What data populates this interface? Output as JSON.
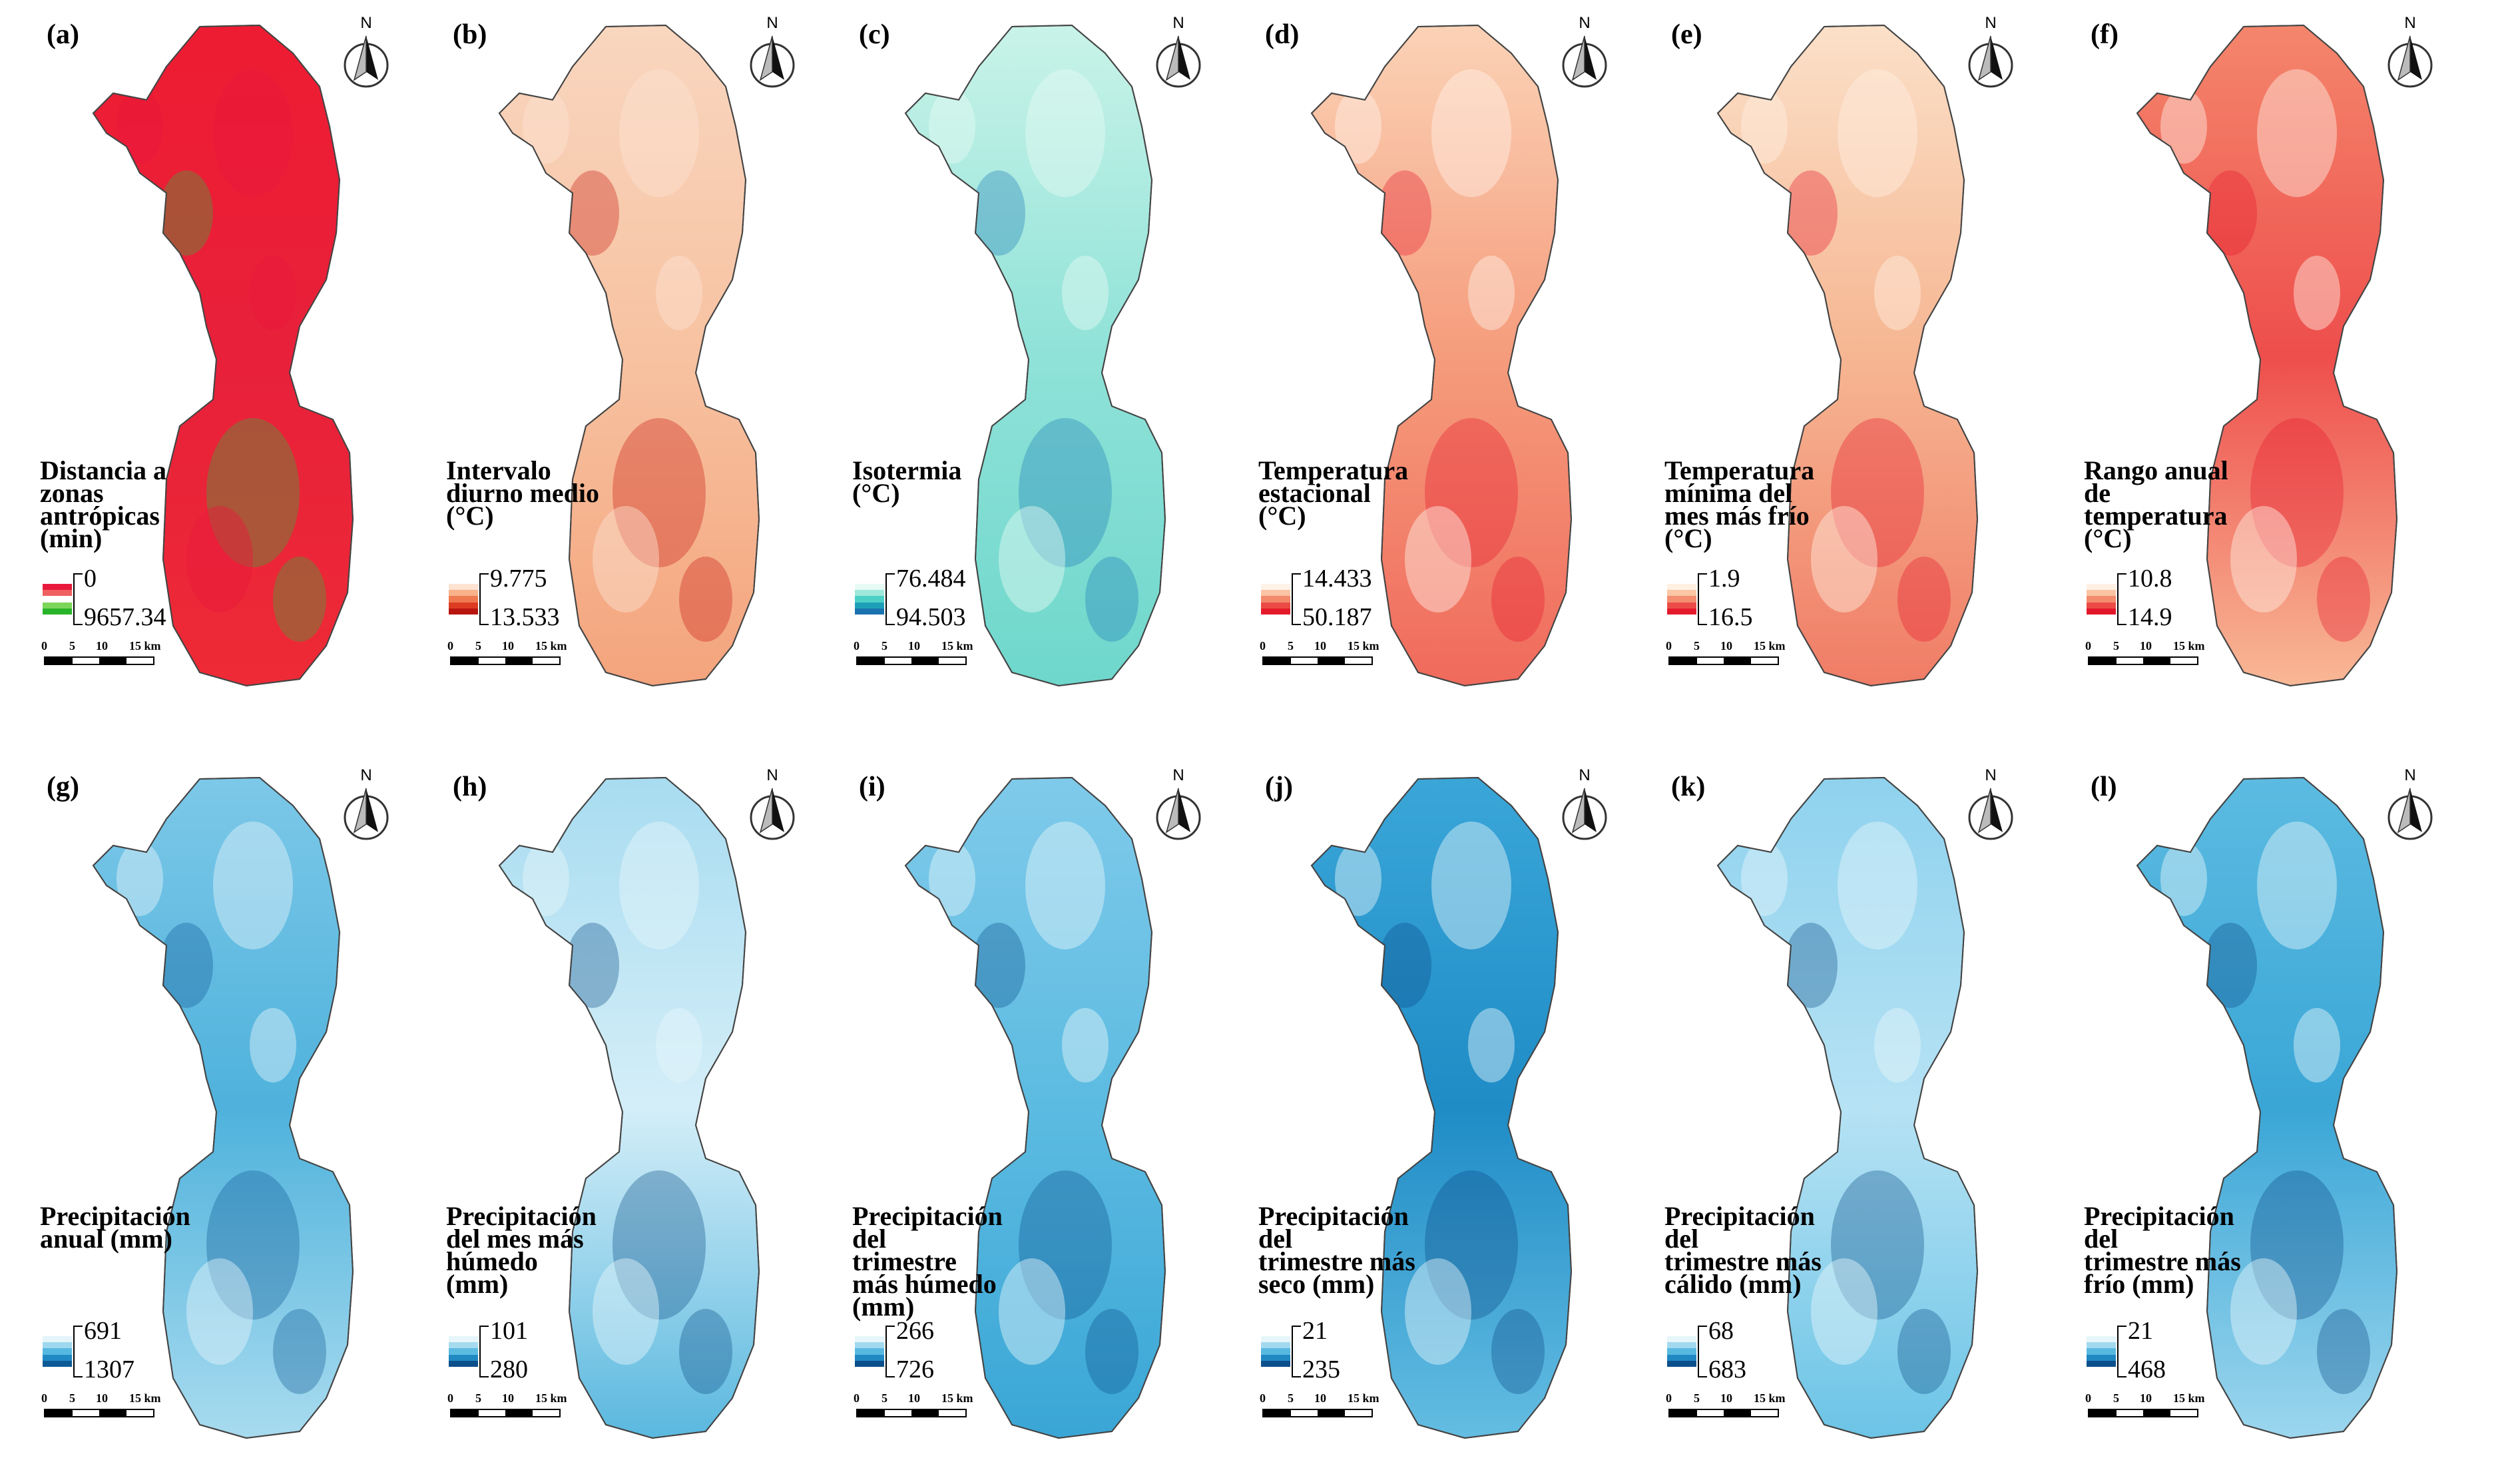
{
  "figure": {
    "scale_labels": [
      "0",
      "5",
      "10",
      "15 km"
    ],
    "north_label": "N",
    "panels": [
      {
        "id": "a",
        "letter": "(a)",
        "title": "Distancia a\nzonas\nantrópicas\n(min)",
        "min": "0",
        "max": "9657.34",
        "palette": [
          "#e8193c",
          "#f06060",
          "#ffffff",
          "#7cd65a",
          "#28b428"
        ],
        "map_colors": [
          "#ee1c32",
          "#e8203a",
          "#ee2a36"
        ],
        "accent": "#34b23c"
      },
      {
        "id": "b",
        "letter": "(b)",
        "title": "Intervalo\ndiurno medio\n(°C)",
        "min": "9.775",
        "max": "13.533",
        "palette": [
          "#fde3d2",
          "#f9b28a",
          "#f07a50",
          "#dc3c22",
          "#b8150f"
        ],
        "map_colors": [
          "#f9d6bf",
          "#f7c2a1",
          "#f4a47c"
        ],
        "accent": "#c81a12"
      },
      {
        "id": "c",
        "letter": "(c)",
        "title": "Isotermia\n(°C)",
        "min": "76.484",
        "max": "94.503",
        "palette": [
          "#e6fbf4",
          "#9ee9dc",
          "#4dd0c6",
          "#1e9fb8",
          "#1a73b0"
        ],
        "map_colors": [
          "#c9f3e8",
          "#8fe2d8",
          "#6fd7cc"
        ],
        "accent": "#1e7ab6"
      },
      {
        "id": "d",
        "letter": "(d)",
        "title": "Temperatura\nestacional\n(°C)",
        "min": "14.433",
        "max": "50.187",
        "palette": [
          "#fff2e8",
          "#fbc4a4",
          "#f38a6c",
          "#ec4a44",
          "#e41a2a"
        ],
        "map_colors": [
          "#fbd2b6",
          "#f59c7c",
          "#f06a5c"
        ],
        "accent": "#e4162a"
      },
      {
        "id": "e",
        "letter": "(e)",
        "title": "Temperatura\nmínima del\nmes más frío\n(°C)",
        "min": "1.9",
        "max": "16.5",
        "palette": [
          "#fff0e2",
          "#fbc7a4",
          "#f48e70",
          "#ec4c48",
          "#e41a2c"
        ],
        "map_colors": [
          "#fbe0c8",
          "#f6b692",
          "#f07c66"
        ],
        "accent": "#e4182c"
      },
      {
        "id": "f",
        "letter": "(f)",
        "title": "Rango anual\nde\ntemperatura\n(°C)",
        "min": "10.8",
        "max": "14.9",
        "palette": [
          "#fff0e4",
          "#fbc5a4",
          "#f48c6e",
          "#ec4a46",
          "#e4162a"
        ],
        "map_colors": [
          "#f4866c",
          "#ee4e4c",
          "#f8b896"
        ],
        "accent": "#e4162a"
      },
      {
        "id": "g",
        "letter": "(g)",
        "title": "Precipitación\nanual (mm)",
        "min": "691",
        "max": "1307",
        "palette": [
          "#e4f5fb",
          "#9fd8ee",
          "#55b8e0",
          "#1f89c4",
          "#0c5a96"
        ],
        "map_colors": [
          "#7cc8e8",
          "#4fb2dc",
          "#a8dbef"
        ],
        "accent": "#0d5a94"
      },
      {
        "id": "h",
        "letter": "(h)",
        "title": "Precipitación\ndel mes más\nhúmedo\n(mm)",
        "min": "101",
        "max": "280",
        "palette": [
          "#e6f6fb",
          "#a6dbef",
          "#5cbbe1",
          "#2189c2",
          "#0b4f8a"
        ],
        "map_colors": [
          "#a8dcf0",
          "#d4eef8",
          "#5ab8df"
        ],
        "accent": "#0c4c86"
      },
      {
        "id": "i",
        "letter": "(i)",
        "title": "Precipitación\ndel\ntrimestre\nmás húmedo\n(mm)",
        "min": "266",
        "max": "726",
        "palette": [
          "#e6f6fb",
          "#a2d9ee",
          "#58b9e0",
          "#1f88c2",
          "#0b4f8c"
        ],
        "map_colors": [
          "#7fcaea",
          "#5cbbe1",
          "#3aa6d6"
        ],
        "accent": "#0b4f8c"
      },
      {
        "id": "j",
        "letter": "(j)",
        "title": "Precipitación\ndel\ntrimestre más\nseco (mm)",
        "min": "21",
        "max": "235",
        "palette": [
          "#e6f6fb",
          "#a2d9ee",
          "#58b9e0",
          "#1f88c2",
          "#0b4f8c"
        ],
        "map_colors": [
          "#3aa6d8",
          "#1f8cc6",
          "#64bde2"
        ],
        "accent": "#0b4a86"
      },
      {
        "id": "k",
        "letter": "(k)",
        "title": "Precipitación\ndel\ntrimestre más\ncálido (mm)",
        "min": "68",
        "max": "683",
        "palette": [
          "#e6f6fb",
          "#a2d9ee",
          "#58b9e0",
          "#1f88c2",
          "#0b4f8c"
        ],
        "map_colors": [
          "#8fd2ee",
          "#b6e2f4",
          "#6cc4e6"
        ],
        "accent": "#0b4c88"
      },
      {
        "id": "l",
        "letter": "(l)",
        "title": "Precipitación\ndel\ntrimestre más\nfrío (mm)",
        "min": "21",
        "max": "468",
        "palette": [
          "#e6f6fb",
          "#a2d9ee",
          "#58b9e0",
          "#1f88c2",
          "#0b4f8c"
        ],
        "map_colors": [
          "#5cbbe1",
          "#3aa6d6",
          "#9cd6ee"
        ],
        "accent": "#0b4a86"
      }
    ]
  }
}
